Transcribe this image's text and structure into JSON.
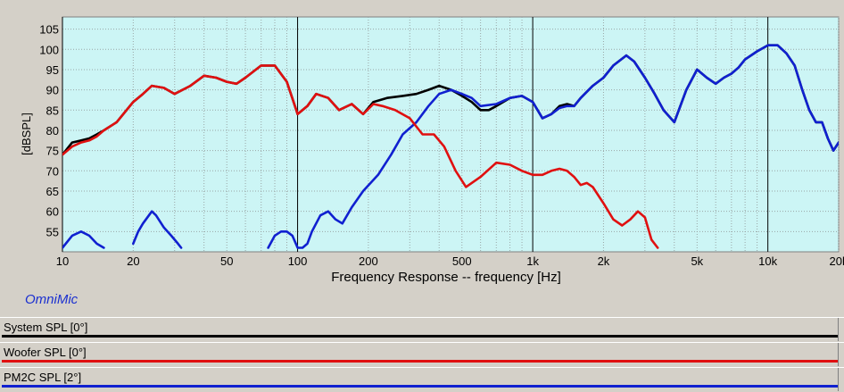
{
  "chart_data": {
    "type": "line",
    "title": "",
    "xlabel": "Frequency Response -- frequency [Hz]",
    "ylabel": "[dBSPL]",
    "xscale": "log",
    "xlim": [
      10,
      20000
    ],
    "ylim": [
      50,
      108
    ],
    "xticks": [
      {
        "value": 10,
        "label": "10"
      },
      {
        "value": 20,
        "label": "20"
      },
      {
        "value": 50,
        "label": "50"
      },
      {
        "value": 100,
        "label": "100"
      },
      {
        "value": 200,
        "label": "200"
      },
      {
        "value": 500,
        "label": "500"
      },
      {
        "value": 1000,
        "label": "1k"
      },
      {
        "value": 2000,
        "label": "2k"
      },
      {
        "value": 5000,
        "label": "5k"
      },
      {
        "value": 10000,
        "label": "10k"
      },
      {
        "value": 20000,
        "label": "20k"
      }
    ],
    "yticks": [
      55,
      60,
      65,
      70,
      75,
      80,
      85,
      90,
      95,
      100,
      105
    ],
    "grid": true,
    "colors": {
      "plot_bg": "#ccf5f5",
      "grid": "#9aa6a6",
      "decade": "#000000",
      "window_bg": "#d4d0c8"
    },
    "series": [
      {
        "name": "System SPL [0°]",
        "color": "#000000",
        "points": [
          [
            10,
            74
          ],
          [
            11,
            77
          ],
          [
            12,
            77.5
          ],
          [
            13,
            78
          ],
          [
            14,
            79
          ],
          [
            15,
            80
          ],
          [
            17,
            82
          ],
          [
            20,
            87
          ],
          [
            22,
            89
          ],
          [
            24,
            91
          ],
          [
            27,
            90.5
          ],
          [
            30,
            89
          ],
          [
            35,
            91
          ],
          [
            40,
            93.5
          ],
          [
            45,
            93
          ],
          [
            50,
            92
          ],
          [
            55,
            91.5
          ],
          [
            60,
            93
          ],
          [
            70,
            96
          ],
          [
            80,
            96
          ],
          [
            90,
            92
          ],
          [
            100,
            84
          ],
          [
            110,
            86
          ],
          [
            120,
            89
          ],
          [
            135,
            88
          ],
          [
            150,
            85
          ],
          [
            170,
            86.5
          ],
          [
            190,
            84
          ],
          [
            210,
            87
          ],
          [
            240,
            88
          ],
          [
            280,
            88.5
          ],
          [
            320,
            89
          ],
          [
            360,
            90
          ],
          [
            400,
            91
          ],
          [
            450,
            90
          ],
          [
            500,
            88.5
          ],
          [
            550,
            87
          ],
          [
            600,
            85
          ],
          [
            650,
            85
          ],
          [
            700,
            86
          ],
          [
            800,
            88
          ],
          [
            900,
            88.5
          ],
          [
            1000,
            87
          ],
          [
            1100,
            83
          ],
          [
            1200,
            84
          ],
          [
            1300,
            86
          ],
          [
            1400,
            86.5
          ],
          [
            1500,
            86
          ],
          [
            1600,
            88
          ],
          [
            1800,
            91
          ],
          [
            2000,
            93
          ],
          [
            2200,
            96
          ],
          [
            2500,
            98.5
          ],
          [
            2700,
            97
          ],
          [
            3000,
            93
          ],
          [
            3300,
            89
          ],
          [
            3600,
            85
          ],
          [
            4000,
            82
          ],
          [
            4500,
            90
          ],
          [
            5000,
            95
          ],
          [
            5500,
            93
          ],
          [
            6000,
            91.5
          ],
          [
            6500,
            93
          ],
          [
            7000,
            94
          ],
          [
            7500,
            95.5
          ],
          [
            8000,
            97.5
          ],
          [
            9000,
            99.5
          ],
          [
            10000,
            101
          ],
          [
            11000,
            101
          ],
          [
            12000,
            99
          ],
          [
            13000,
            96
          ],
          [
            14000,
            90
          ],
          [
            15000,
            85
          ],
          [
            16000,
            82
          ],
          [
            17000,
            82
          ],
          [
            18000,
            78
          ],
          [
            19000,
            75
          ],
          [
            20000,
            77
          ]
        ]
      },
      {
        "name": "Woofer SPL [0°]",
        "color": "#e01010",
        "points": [
          [
            10,
            74
          ],
          [
            11,
            76
          ],
          [
            12,
            77
          ],
          [
            13,
            77.5
          ],
          [
            14,
            78.5
          ],
          [
            15,
            80
          ],
          [
            17,
            82
          ],
          [
            20,
            87
          ],
          [
            22,
            89
          ],
          [
            24,
            91
          ],
          [
            27,
            90.5
          ],
          [
            30,
            89
          ],
          [
            35,
            91
          ],
          [
            40,
            93.5
          ],
          [
            45,
            93
          ],
          [
            50,
            92
          ],
          [
            55,
            91.5
          ],
          [
            60,
            93
          ],
          [
            70,
            96
          ],
          [
            80,
            96
          ],
          [
            90,
            92
          ],
          [
            100,
            84
          ],
          [
            110,
            86
          ],
          [
            120,
            89
          ],
          [
            135,
            88
          ],
          [
            150,
            85
          ],
          [
            170,
            86.5
          ],
          [
            190,
            84
          ],
          [
            210,
            86.5
          ],
          [
            230,
            86
          ],
          [
            260,
            85
          ],
          [
            300,
            83
          ],
          [
            340,
            79
          ],
          [
            380,
            79
          ],
          [
            420,
            76
          ],
          [
            470,
            70
          ],
          [
            520,
            66
          ],
          [
            600,
            68.5
          ],
          [
            700,
            72
          ],
          [
            800,
            71.5
          ],
          [
            900,
            70
          ],
          [
            1000,
            69
          ],
          [
            1100,
            69
          ],
          [
            1200,
            70
          ],
          [
            1300,
            70.5
          ],
          [
            1400,
            70
          ],
          [
            1500,
            68.5
          ],
          [
            1600,
            66.5
          ],
          [
            1700,
            67
          ],
          [
            1800,
            66
          ],
          [
            2000,
            62
          ],
          [
            2200,
            58
          ],
          [
            2400,
            56.5
          ],
          [
            2600,
            58
          ],
          [
            2800,
            60
          ],
          [
            3000,
            58.5
          ],
          [
            3200,
            53
          ],
          [
            3400,
            51
          ]
        ]
      },
      {
        "name": "PM2C SPL [2°]",
        "color": "#1020d0",
        "segments": [
          [
            [
              10,
              51
            ],
            [
              11,
              54
            ],
            [
              12,
              55
            ],
            [
              13,
              54
            ],
            [
              14,
              52
            ],
            [
              15,
              51
            ]
          ],
          [
            [
              20,
              52
            ],
            [
              21,
              55
            ],
            [
              22,
              57
            ],
            [
              24,
              60
            ],
            [
              25,
              59
            ],
            [
              27,
              56
            ],
            [
              29,
              54
            ],
            [
              31,
              52
            ],
            [
              32,
              51
            ]
          ],
          [
            [
              75,
              51
            ],
            [
              80,
              54
            ],
            [
              85,
              55
            ],
            [
              90,
              55
            ],
            [
              95,
              54
            ],
            [
              100,
              51
            ],
            [
              105,
              51
            ],
            [
              110,
              52
            ],
            [
              115,
              55
            ],
            [
              125,
              59
            ],
            [
              135,
              60
            ],
            [
              145,
              58
            ],
            [
              155,
              57
            ],
            [
              170,
              61
            ],
            [
              190,
              65
            ],
            [
              220,
              69
            ],
            [
              250,
              74
            ],
            [
              280,
              79
            ],
            [
              320,
              82
            ],
            [
              360,
              86
            ],
            [
              400,
              89
            ],
            [
              450,
              90
            ],
            [
              500,
              89
            ],
            [
              550,
              88
            ],
            [
              600,
              86
            ],
            [
              700,
              86.5
            ],
            [
              800,
              88
            ],
            [
              900,
              88.5
            ],
            [
              1000,
              87
            ],
            [
              1100,
              83
            ],
            [
              1200,
              84
            ],
            [
              1300,
              85.5
            ],
            [
              1400,
              86
            ],
            [
              1500,
              86
            ],
            [
              1600,
              88
            ],
            [
              1800,
              91
            ],
            [
              2000,
              93
            ],
            [
              2200,
              96
            ],
            [
              2500,
              98.5
            ],
            [
              2700,
              97
            ],
            [
              3000,
              93
            ],
            [
              3300,
              89
            ],
            [
              3600,
              85
            ],
            [
              4000,
              82
            ],
            [
              4500,
              90
            ],
            [
              5000,
              95
            ],
            [
              5500,
              93
            ],
            [
              6000,
              91.5
            ],
            [
              6500,
              93
            ],
            [
              7000,
              94
            ],
            [
              7500,
              95.5
            ],
            [
              8000,
              97.5
            ],
            [
              9000,
              99.5
            ],
            [
              10000,
              101
            ],
            [
              11000,
              101
            ],
            [
              12000,
              99
            ],
            [
              13000,
              96
            ],
            [
              14000,
              90
            ],
            [
              15000,
              85
            ],
            [
              16000,
              82
            ],
            [
              17000,
              82
            ],
            [
              18000,
              78
            ],
            [
              19000,
              75
            ],
            [
              20000,
              77
            ]
          ]
        ]
      }
    ]
  },
  "brand": "OmniMic",
  "legend": [
    {
      "label": "System SPL [0°]",
      "color": "#000000"
    },
    {
      "label": "Woofer SPL [0°]",
      "color": "#e01010"
    },
    {
      "label": "PM2C SPL [2°]",
      "color": "#1020d0"
    }
  ]
}
